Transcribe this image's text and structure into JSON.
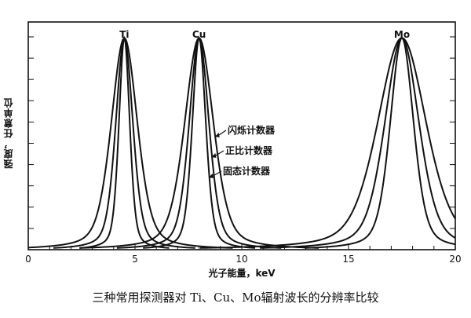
{
  "chart_data": {
    "type": "line",
    "title": "",
    "caption": "三种常用探测器对 Ti、Cu、Mo辐射波长的分辨率比较",
    "xlabel": "光子能量，keV",
    "ylabel": "强度，任意单位",
    "xlim": [
      0,
      20
    ],
    "ylim": [
      0,
      1
    ],
    "x_ticks": [
      0,
      5,
      10,
      15,
      20
    ],
    "y_tick_labels_shown": false,
    "grid": false,
    "peaks": [
      {
        "label": "Ti",
        "center_kev": 4.5
      },
      {
        "label": "Cu",
        "center_kev": 8.0
      },
      {
        "label": "Mo",
        "center_kev": 17.5
      }
    ],
    "series": [
      {
        "name": "闪烁计数器",
        "fwhm_kev": {
          "Ti": 1.45,
          "Cu": 1.6,
          "Mo": 2.7
        }
      },
      {
        "name": "正比计数器",
        "fwhm_kev": {
          "Ti": 0.95,
          "Cu": 1.1,
          "Mo": 1.9
        }
      },
      {
        "name": "固态计数器",
        "fwhm_kev": {
          "Ti": 0.6,
          "Cu": 0.75,
          "Mo": 1.3
        }
      }
    ],
    "peak_height": 0.93,
    "annotations": [
      "闪烁计数器",
      "正比计数器",
      "固态计数器"
    ]
  }
}
